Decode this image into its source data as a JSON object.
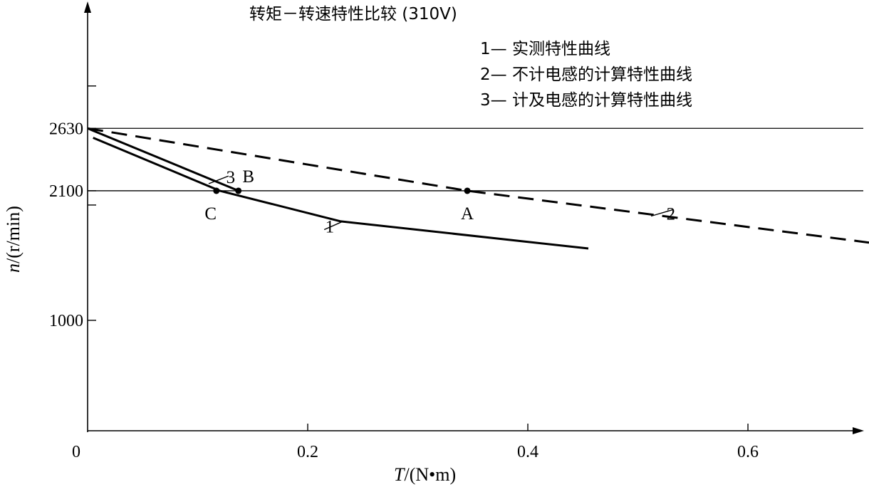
{
  "chart_data": {
    "type": "line",
    "title": "转矩－转速特性比较 (310V)",
    "xlabel_var": "T",
    "xlabel_unit": "/(N•m)",
    "ylabel_var": "n",
    "ylabel_unit": "/(r/min)",
    "xlim": [
      0,
      0.71
    ],
    "ylim": [
      50,
      3720
    ],
    "x_ticks": [
      {
        "value": 0,
        "label": "0"
      },
      {
        "value": 0.2,
        "label": "0.2"
      },
      {
        "value": 0.4,
        "label": "0.4"
      },
      {
        "value": 0.6,
        "label": "0.6"
      }
    ],
    "y_ticks": [
      {
        "value": 1000,
        "label": "1000"
      },
      {
        "value": 2100,
        "label": "2100"
      },
      {
        "value": 2630,
        "label": "2630"
      },
      {
        "value": 2990,
        "label": ""
      }
    ],
    "reference_lines": [
      2630,
      2100
    ],
    "grid": false,
    "legend": {
      "placement": "top-right",
      "items": [
        "1— 实测特性曲线",
        "2— 不计电感的计算特性曲线",
        "3— 计及电感的计算特性曲线"
      ]
    },
    "series": [
      {
        "id": "1",
        "style": "solid",
        "x": [
          0.005,
          0.12,
          0.23,
          0.455
        ],
        "y": [
          2550,
          2100,
          1840,
          1610
        ]
      },
      {
        "id": "2",
        "style": "dashed",
        "x": [
          0.0,
          0.345,
          0.71
        ],
        "y": [
          2630,
          2100,
          1660
        ]
      },
      {
        "id": "3",
        "style": "solid",
        "x": [
          0.0,
          0.137
        ],
        "y": [
          2630,
          2100
        ]
      }
    ],
    "curve_labels": [
      {
        "text": "1",
        "x": 0.22,
        "y": 1800
      },
      {
        "text": "2",
        "x": 0.53,
        "y": 1910
      },
      {
        "text": "3",
        "x": 0.13,
        "y": 2220
      }
    ],
    "points": [
      {
        "label": "A",
        "x": 0.345,
        "y": 2100
      },
      {
        "label": "B",
        "x": 0.137,
        "y": 2100
      },
      {
        "label": "C",
        "x": 0.117,
        "y": 2100
      }
    ]
  }
}
